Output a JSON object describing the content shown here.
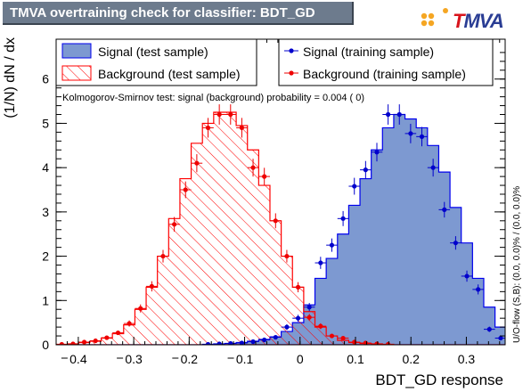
{
  "title": "TMVA overtraining check for classifier: BDT_GD",
  "logo": {
    "prefix": "T",
    "rest": "MVA",
    "accent": "#d8141c",
    "main": "#2a3d94",
    "dots": [
      "#f5a623",
      "#f5a623",
      "#f5a623",
      "#f5a623"
    ]
  },
  "ks_text": "Kolmogorov-Smirnov test: signal (background) probability = 0.004 (    0)",
  "overflow_text": "U/O-flow (S,B): (0.0, 0.0)% / (0.0, 0.0)%",
  "legend": {
    "signal_test": "Signal (test sample)",
    "background_test": "Background (test sample)",
    "signal_train": "Signal (training sample)",
    "background_train": "Background (training sample)"
  },
  "colors": {
    "signal_fill": "#7d99d1",
    "signal_line": "#0000ee",
    "background_line": "#ff0000",
    "signal_marker": "#0000cc",
    "background_marker": "#ee0000"
  },
  "chart_data": {
    "type": "histogram",
    "xlabel": "BDT_GD response",
    "ylabel": "(1/N) dN / dx",
    "xlim": [
      -0.44,
      0.37
    ],
    "ylim": [
      0,
      6.9
    ],
    "x_ticks": [
      -0.4,
      -0.3,
      -0.2,
      -0.1,
      0,
      0.1,
      0.2,
      0.3
    ],
    "x_tick_labels": [
      "0.4",
      "0.3",
      "0.2",
      "0.1",
      "0",
      "0.1",
      "0.2",
      "0.3"
    ],
    "x_tick_dashes": [
      true,
      true,
      true,
      true,
      false,
      false,
      false,
      false
    ],
    "y_ticks": [
      0,
      1,
      2,
      3,
      4,
      5,
      6
    ],
    "y_tick_labels": [
      "0",
      "1",
      "2",
      "3",
      "4",
      "5",
      "6"
    ],
    "bin_width": 0.0203,
    "bin_edges_start": -0.44,
    "signal_test": [
      0,
      0,
      0,
      0,
      0,
      0,
      0,
      0,
      0,
      0,
      0,
      0,
      0,
      0.01,
      0.02,
      0.03,
      0.05,
      0.08,
      0.12,
      0.18,
      0.3,
      0.5,
      0.9,
      1.5,
      1.95,
      2.5,
      3.15,
      3.75,
      4.4,
      4.9,
      5.2,
      5.1,
      4.9,
      4.5,
      3.9,
      3.1,
      2.3,
      1.5,
      0.85,
      0.4
    ],
    "background_test": [
      0.01,
      0.02,
      0.05,
      0.08,
      0.15,
      0.25,
      0.45,
      0.8,
      1.3,
      2.0,
      2.85,
      3.75,
      4.55,
      5.0,
      5.25,
      5.25,
      4.95,
      4.4,
      3.6,
      2.8,
      2.0,
      1.3,
      0.75,
      0.4,
      0.2,
      0.1,
      0.05,
      0.03,
      0.02,
      0.01,
      0,
      0,
      0,
      0,
      0,
      0,
      0,
      0,
      0,
      0
    ],
    "signal_train": [
      0,
      0,
      0,
      0,
      0,
      0,
      0,
      0,
      0,
      0,
      0,
      0,
      0,
      0.01,
      0.02,
      0.03,
      0.04,
      0.07,
      0.11,
      0.17,
      0.4,
      0.6,
      0.85,
      1.85,
      2.25,
      2.85,
      3.58,
      3.95,
      4.35,
      5.2,
      5.2,
      4.77,
      4.7,
      4.0,
      3.05,
      2.3,
      1.55,
      1.25,
      0.35,
      0.15
    ],
    "background_train": [
      0.01,
      0.02,
      0.06,
      0.09,
      0.16,
      0.27,
      0.48,
      0.82,
      1.32,
      2.0,
      2.72,
      3.5,
      4.1,
      4.9,
      5.2,
      5.2,
      4.9,
      4.0,
      3.8,
      2.8,
      2.0,
      1.3,
      0.62,
      0.42,
      0.2,
      0.15,
      0.06,
      0.04,
      0.02,
      0.01,
      0,
      0,
      0,
      0,
      0,
      0,
      0,
      0,
      0,
      0
    ]
  }
}
